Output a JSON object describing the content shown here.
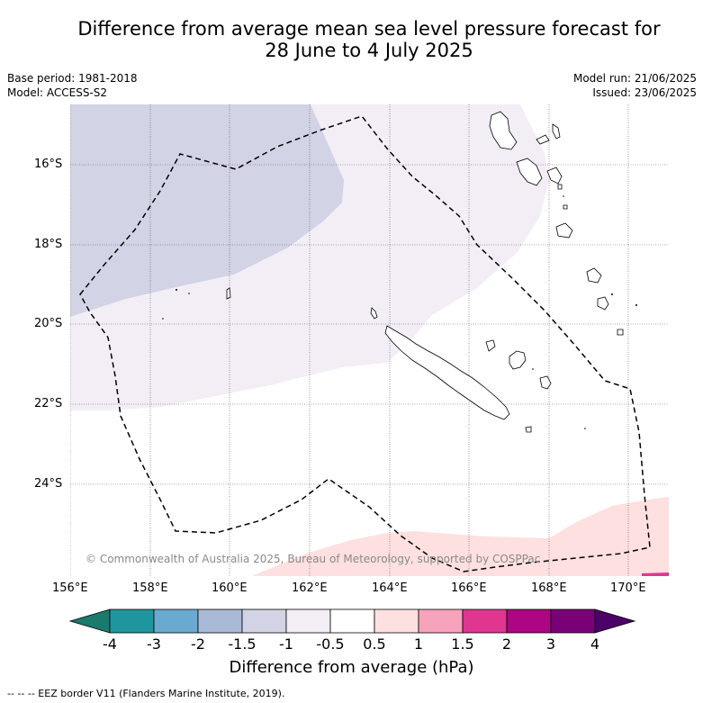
{
  "header": {
    "title_line1": "Difference from average mean sea level pressure forecast for",
    "title_line2": "28 June to 4 July 2025",
    "base_period": "Base period: 1981-2018",
    "model": "Model: ACCESS-S2",
    "model_run": "Model run: 21/06/2025",
    "issued": "Issued: 23/06/2025"
  },
  "map": {
    "lat_labels": [
      "16°S",
      "18°S",
      "20°S",
      "22°S",
      "24°S"
    ],
    "lon_labels": [
      "156°E",
      "158°E",
      "160°E",
      "162°E",
      "164°E",
      "166°E",
      "168°E",
      "170°E"
    ],
    "copyright": "© Commonwealth of Australia 2025, Bureau of Meteorology, supported by COSPPac",
    "eez_legend": "-- -- -- EEZ border V11 (Flanders Marine Institute, 2019).",
    "anomaly_fills": {
      "-1.5_to_-1": "#d3d3e6",
      "-1_to_-0.5": "#f3eef6",
      "0.5_to_1": "#fde0df",
      "1.5_to_2": "#e0368f"
    }
  },
  "colorbar": {
    "title": "Difference from average (hPa)",
    "labels": [
      "-4",
      "-3",
      "-2",
      "-1.5",
      "-1",
      "-0.5",
      "0.5",
      "1",
      "1.5",
      "2",
      "3",
      "4"
    ],
    "colors": [
      "#1b7a6e",
      "#1f969e",
      "#6aaad0",
      "#a9b9d6",
      "#d3d3e6",
      "#f3eef6",
      "#ffffff",
      "#fde0df",
      "#f7a3bb",
      "#e0368f",
      "#ad0583",
      "#7a0078",
      "#4c0068"
    ]
  }
}
